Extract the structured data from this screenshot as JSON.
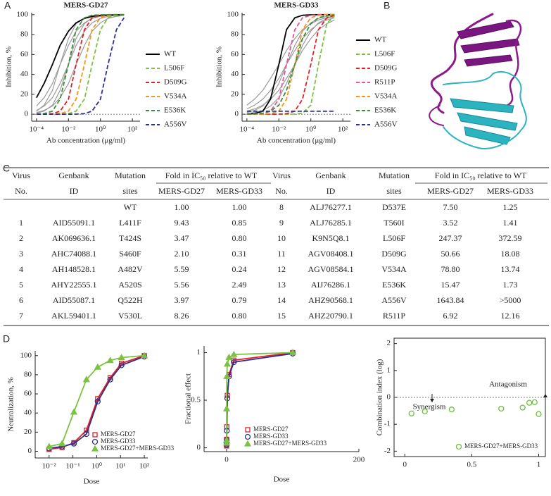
{
  "panel_labels": [
    "A",
    "B",
    "C",
    "D"
  ],
  "chart_data": [
    {
      "type": "line",
      "title": "MERS-GD27",
      "xlabel": "Ab concentration (μg/ml)",
      "ylabel": "Inhibition, %",
      "log_x": true,
      "xlim": [
        5e-05,
        300
      ],
      "ylim": [
        -7,
        102
      ],
      "reference_line": 0,
      "legend": "outside-right",
      "xticks": [
        {
          "value": 0.0001,
          "label": "10⁻⁴"
        },
        {
          "value": 0.01,
          "label": "10⁻²"
        },
        {
          "value": 1,
          "label": "10⁰"
        },
        {
          "value": 100,
          "label": "10²"
        }
      ],
      "yticks": [
        0,
        20,
        40,
        60,
        80,
        100
      ],
      "x": [
        0.0001,
        0.0003,
        0.001,
        0.003,
        0.01,
        0.03,
        0.1,
        0.3,
        1,
        3,
        10,
        30,
        100
      ],
      "series": [
        {
          "color": "#9a9a9a",
          "line_style": "solid",
          "values": [
            8.2,
            16.6,
            30.9,
            50,
            69.1,
            83.4,
            91.8,
            96.2,
            98.3,
            99.2,
            99.6,
            99.8,
            null
          ]
        },
        {
          "color": "#9a9a9a",
          "line_style": "solid",
          "values": [
            3.8,
            8.2,
            16.6,
            30.9,
            50,
            69.1,
            83.4,
            91.8,
            96.2,
            98.3,
            99.2,
            99.6,
            null
          ]
        },
        {
          "color": "#9a9a9a",
          "line_style": "solid",
          "values": [
            1.7,
            3.8,
            8.2,
            16.6,
            30.9,
            50,
            69.1,
            83.4,
            91.8,
            96.2,
            98.3,
            99.2,
            null
          ]
        },
        {
          "color": "#9a9a9a",
          "line_style": "solid",
          "values": [
            3.1,
            9.1,
            24,
            50,
            76,
            90.9,
            96.9,
            99,
            99.7,
            99.9,
            100,
            100,
            null
          ]
        },
        {
          "color": "#9a9a9a",
          "line_style": "solid",
          "values": [
            1,
            3.1,
            9.1,
            24,
            50,
            76,
            90.9,
            96.9,
            99,
            99.7,
            99.9,
            100,
            null
          ]
        },
        {
          "name": "WT",
          "color": "#000000",
          "line_style": "solid",
          "values": [
            16.6,
            30.9,
            50,
            69.1,
            83.4,
            91.8,
            96.2,
            98.3,
            99.2,
            99.6,
            99.8,
            99.9,
            null
          ]
        },
        {
          "name": "L506F",
          "color": "#7dc242",
          "line_style": "dashed",
          "values": [
            0,
            0,
            0,
            0.1,
            0.6,
            3.1,
            15.1,
            50,
            84.9,
            96.9,
            99.4,
            99.9,
            null
          ]
        },
        {
          "name": "D509G",
          "color": "#e31e24",
          "line_style": "dashed",
          "values": [
            0,
            0.1,
            0.6,
            3.1,
            15.1,
            50,
            84.9,
            96.9,
            99.4,
            99.9,
            100,
            100,
            null
          ]
        },
        {
          "name": "V534A",
          "color": "#f7941d",
          "line_style": "dashed",
          "values": [
            0,
            0,
            0.1,
            0.6,
            3.1,
            15.1,
            50,
            84.9,
            96.9,
            99.4,
            99.9,
            100,
            null
          ]
        },
        {
          "name": "E536K",
          "color": "#3a8f3a",
          "line_style": "dashed",
          "values": [
            0.1,
            0.6,
            3.1,
            15.1,
            50,
            84.9,
            96.9,
            99.4,
            99.9,
            100,
            100,
            100,
            null
          ]
        },
        {
          "name": "A556V",
          "color": "#2e3192",
          "line_style": "dashed",
          "values": [
            0,
            0,
            0,
            0,
            0,
            0.1,
            0.6,
            3.1,
            15.1,
            50,
            84.9,
            96.9,
            null
          ]
        }
      ]
    },
    {
      "type": "line",
      "title": "MERS-GD33",
      "xlabel": "Ab concentration (μg/ml)",
      "ylabel": "Inhibition, %",
      "log_x": true,
      "xlim": [
        5e-05,
        300
      ],
      "ylim": [
        -7,
        102
      ],
      "reference_line": 0,
      "legend": "outside-right",
      "xticks": [
        {
          "value": 0.0001,
          "label": "10⁻⁴"
        },
        {
          "value": 0.01,
          "label": "10⁻²"
        },
        {
          "value": 1,
          "label": "10⁰"
        },
        {
          "value": 100,
          "label": "10²"
        }
      ],
      "yticks": [
        0,
        20,
        40,
        60,
        80,
        100
      ],
      "x": [
        0.0001,
        0.0003,
        0.001,
        0.003,
        0.01,
        0.03,
        0.1,
        0.3,
        1,
        3,
        10,
        30,
        100
      ],
      "series": [
        {
          "color": "#9a9a9a",
          "line_style": "solid",
          "values": [
            5.3,
            9.1,
            15.1,
            24,
            36,
            50,
            64,
            76,
            84.9,
            90.9,
            94.7,
            96.9,
            null
          ]
        },
        {
          "color": "#9a9a9a",
          "line_style": "solid",
          "values": [
            0.8,
            1.7,
            3.8,
            8.2,
            16.6,
            30.9,
            50,
            69.1,
            83.4,
            91.8,
            96.2,
            98.3,
            null
          ]
        },
        {
          "color": "#9a9a9a",
          "line_style": "solid",
          "values": [
            1.7,
            3.8,
            8.2,
            16.6,
            30.9,
            50,
            69.1,
            83.4,
            91.8,
            96.2,
            98.3,
            99.2,
            null
          ]
        },
        {
          "color": "#9a9a9a",
          "line_style": "solid",
          "values": [
            3.1,
            5.3,
            9.1,
            15.1,
            24,
            36,
            50,
            64,
            76,
            84.9,
            90.9,
            94.7,
            null
          ]
        },
        {
          "color": "#9a9a9a",
          "line_style": "solid",
          "values": [
            9.1,
            15.1,
            24,
            36,
            50,
            64,
            76,
            84.9,
            90.9,
            94.7,
            96.9,
            98.2,
            null
          ]
        },
        {
          "name": "WT",
          "color": "#000000",
          "line_style": "solid",
          "values": [
            0.1,
            0.6,
            3.1,
            15.1,
            50,
            84.9,
            96.9,
            99.4,
            99.9,
            100,
            100,
            100,
            null
          ]
        },
        {
          "name": "L506F",
          "color": "#7dc242",
          "line_style": "dashed",
          "values": [
            0,
            0,
            0,
            0,
            0,
            0,
            0.1,
            1,
            9.1,
            50,
            90.9,
            99,
            null
          ]
        },
        {
          "name": "D509G",
          "color": "#e31e24",
          "line_style": "dashed",
          "values": [
            0,
            0,
            0,
            0,
            0.1,
            0.6,
            3.1,
            15.1,
            50,
            84.9,
            96.9,
            99.4,
            null
          ]
        },
        {
          "name": "R511P",
          "color": "#e6559b",
          "line_style": "dashed",
          "values": [
            0,
            0.1,
            0.6,
            3.1,
            15.1,
            50,
            84.9,
            96.9,
            99.4,
            99.9,
            100,
            100,
            null
          ]
        },
        {
          "name": "V534A",
          "color": "#f7941d",
          "line_style": "dashed",
          "values": [
            0,
            0,
            0.1,
            0.6,
            3.1,
            15.1,
            50,
            84.9,
            96.9,
            99.4,
            99.9,
            100,
            null
          ]
        },
        {
          "name": "E536K",
          "color": "#3a8f3a",
          "line_style": "dashed",
          "values": [
            0.1,
            0.3,
            1,
            3.1,
            9.1,
            24,
            50,
            76,
            90.9,
            96.9,
            99,
            99.7,
            null
          ]
        },
        {
          "name": "A556V",
          "color": "#2e3192",
          "line_style": "dashed",
          "values": [
            3,
            3,
            3,
            3,
            3,
            3,
            3,
            3,
            3,
            3,
            3,
            3,
            null
          ]
        }
      ]
    },
    {
      "type": "line",
      "xlabel": "Dose",
      "ylabel": "Neutralization, %",
      "log_x": true,
      "xlim": [
        0.0026,
        140
      ],
      "ylim": [
        -7,
        105
      ],
      "legend": "lower-right",
      "xticks": [
        {
          "value": 0.01,
          "label": "10⁻²"
        },
        {
          "value": 0.1,
          "label": "10⁻¹"
        },
        {
          "value": 1,
          "label": "10⁰"
        },
        {
          "value": 10,
          "label": "10¹"
        },
        {
          "value": 100,
          "label": "10²"
        }
      ],
      "yticks": [
        0,
        20,
        40,
        60,
        80,
        100
      ],
      "x": [
        0.01,
        0.035,
        0.11,
        0.37,
        1.1,
        3.7,
        11,
        100
      ],
      "series": [
        {
          "name": "MERS-GD27",
          "color": "#e31e24",
          "marker": "square",
          "line_style": "solid",
          "values": [
            2,
            4,
            9,
            22,
            55,
            77,
            92,
            100
          ]
        },
        {
          "name": "MERS-GD33",
          "color": "#2e3192",
          "marker": "circle",
          "line_style": "solid",
          "values": [
            3,
            5,
            8,
            18,
            52,
            75,
            90,
            99
          ]
        },
        {
          "name": "MERS-GD27+MERS-GD33",
          "color": "#7cc242",
          "marker": "triangle",
          "line_style": "solid",
          "values": [
            5,
            8,
            41,
            75,
            88,
            95,
            98,
            100
          ]
        }
      ]
    },
    {
      "type": "line",
      "xlabel": "Dose",
      "ylabel": "Fractional effect",
      "xlim": [
        -34,
        200
      ],
      "ylim": [
        -0.04,
        1.07
      ],
      "legend": "lower-right",
      "xticks": [
        0,
        200
      ],
      "yticks": [
        0,
        0.5,
        1
      ],
      "x": [
        0.01,
        0.035,
        0.11,
        0.37,
        1.1,
        3.7,
        11,
        100
      ],
      "series": [
        {
          "name": "MERS-GD27",
          "color": "#e31e24",
          "marker": "square",
          "line_style": "solid",
          "values": [
            0.02,
            0.04,
            0.09,
            0.22,
            0.55,
            0.77,
            0.92,
            1
          ]
        },
        {
          "name": "MERS-GD33",
          "color": "#2e3192",
          "marker": "circle",
          "line_style": "solid",
          "values": [
            0.03,
            0.05,
            0.08,
            0.18,
            0.52,
            0.75,
            0.9,
            0.99
          ]
        },
        {
          "name": "MERS-GD27+MERS-GD33",
          "color": "#7cc242",
          "marker": "triangle",
          "line_style": "solid",
          "values": [
            0.05,
            0.08,
            0.41,
            0.75,
            0.88,
            0.95,
            0.98,
            1
          ]
        }
      ]
    },
    {
      "type": "scatter",
      "ylabel": "Combination index (log)",
      "frame": true,
      "xlim": [
        -0.08,
        1.05
      ],
      "ylim": [
        -2.2,
        2.2
      ],
      "reference_line": 0,
      "legend": "lower-right",
      "xticks": [
        0,
        0.5,
        1
      ],
      "yticks": [
        -2,
        -1,
        0,
        1,
        2
      ],
      "annotations": [
        {
          "text": "Synergism"
        },
        {
          "text": "Antagonism"
        }
      ],
      "x": [
        0.05,
        0.15,
        0.35,
        0.72,
        0.88,
        0.93,
        0.97,
        1.0
      ],
      "series": [
        {
          "name": "MERS-GD27+MERS-GD33",
          "color": "#6cbf3a",
          "marker": "circle",
          "line_style": "none",
          "values": [
            -0.6,
            -0.52,
            -0.45,
            -0.42,
            -0.38,
            -0.2,
            -0.18,
            -0.62
          ]
        }
      ]
    }
  ],
  "table": {
    "header_top": [
      "Virus",
      "Genbank",
      "Mutation",
      "Fold in IC₅₀ relative to WT",
      "Virus",
      "Genbank",
      "Mutation",
      "Fold in IC₅₀ relative to WT"
    ],
    "header_bottom": [
      "No.",
      "ID",
      "sites",
      "MERS-GD27",
      "MERS-GD33",
      "No.",
      "ID",
      "sites",
      "MERS-GD27",
      "MERS-GD33"
    ],
    "rows": [
      [
        "",
        "",
        "WT",
        "1.00",
        "1.00",
        "8",
        "ALJ76277.1",
        "D537E",
        "7.50",
        "1.25"
      ],
      [
        "1",
        "AID55091.1",
        "L411F",
        "9.43",
        "0.85",
        "9",
        "ALJ76285.1",
        "T560I",
        "3.52",
        "1.41"
      ],
      [
        "2",
        "AK069636.1",
        "T424S",
        "3.47",
        "0.80",
        "10",
        "K9N5Q8.1",
        "L506F",
        "247.37",
        "372.59"
      ],
      [
        "3",
        "AHC74088.1",
        "S460F",
        "2.10",
        "0.31",
        "11",
        "AGV08408.1",
        "D509G",
        "50.66",
        "18.08"
      ],
      [
        "4",
        "AH148528.1",
        "A482V",
        "5.59",
        "0.24",
        "12",
        "AGV08584.1",
        "V534A",
        "78.80",
        "13.74"
      ],
      [
        "5",
        "AHY22555.1",
        "A520S",
        "5.56",
        "2.49",
        "13",
        "AIJ76286.1",
        "E536K",
        "15.47",
        "1.73"
      ],
      [
        "6",
        "AID55087.1",
        "Q522H",
        "3.97",
        "0.79",
        "14",
        "AHZ90568.1",
        "A556V",
        "1643.84",
        ">5000"
      ],
      [
        "7",
        "AKL59401.1",
        "V530L",
        "8.26",
        "0.80",
        "15",
        "AHZ20790.1",
        "R511P",
        "6.92",
        "12.16"
      ]
    ],
    "right_colors": [
      "#222222",
      "#222222",
      "#1f9a80",
      "#e31e24",
      "#f0a030",
      "#1f9a80",
      "#3a3aa0",
      "#d0308f"
    ]
  }
}
